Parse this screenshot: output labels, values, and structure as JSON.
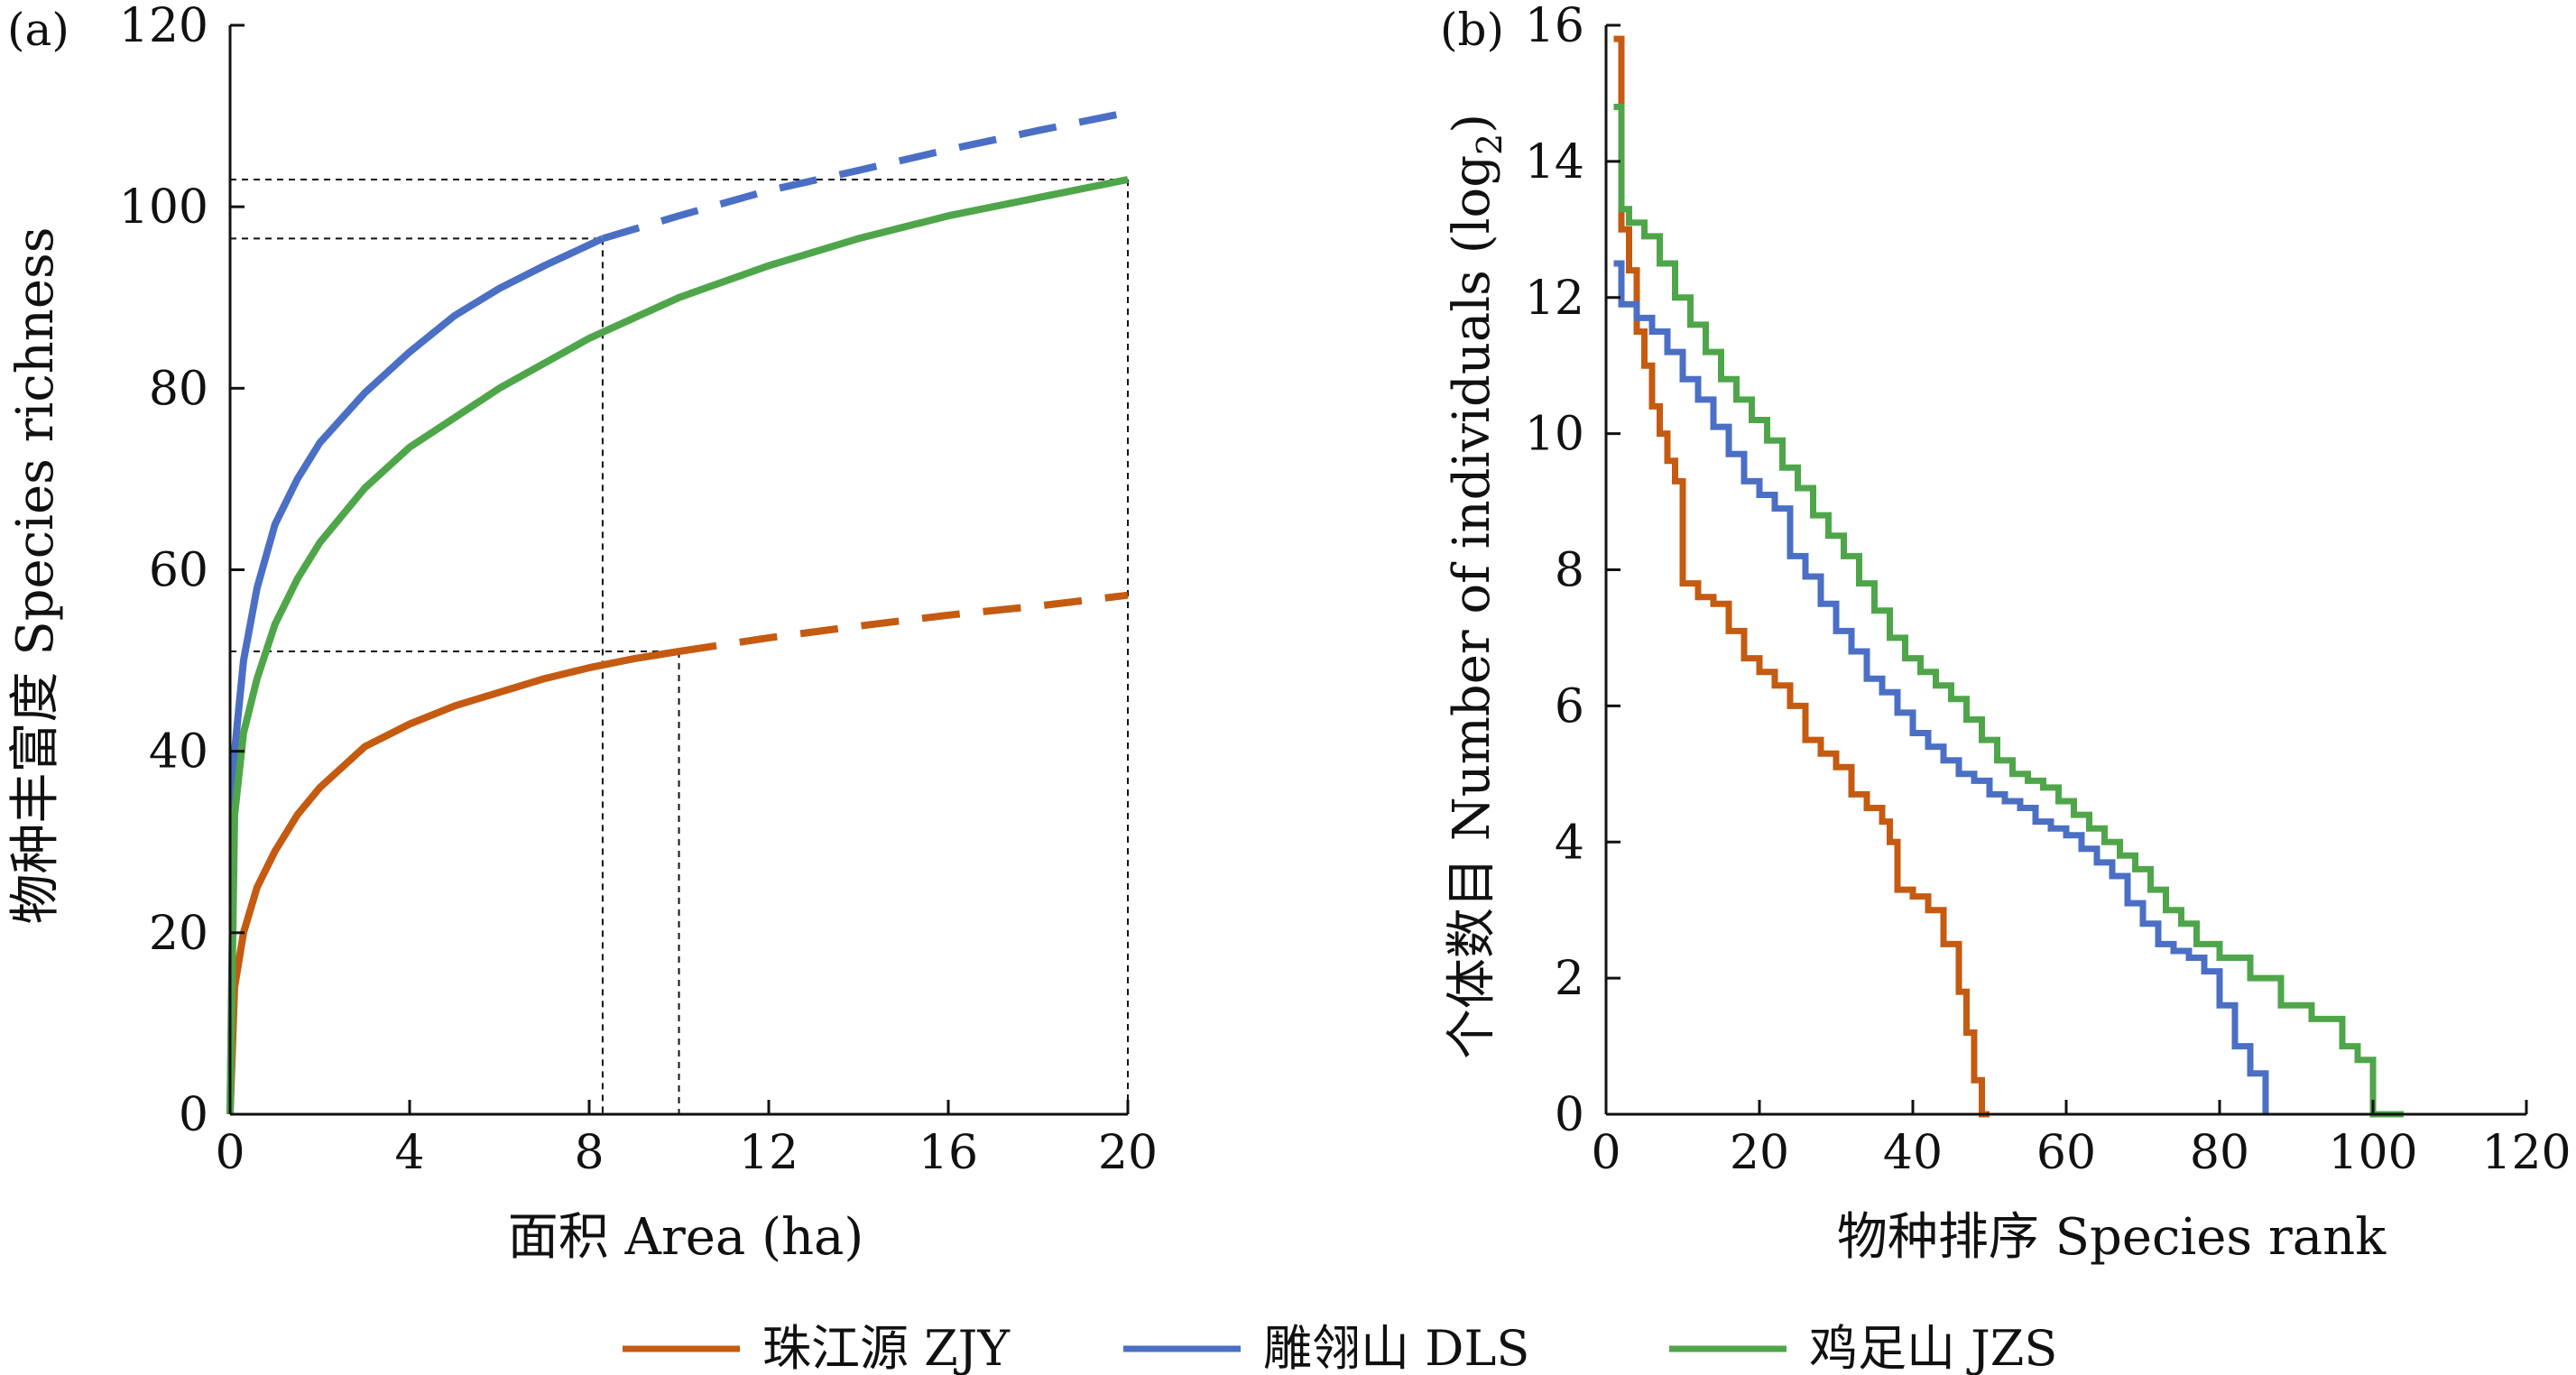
{
  "colors": {
    "zjy": "#c55a11",
    "dls": "#4a6fc4",
    "jzs": "#4fa64a",
    "axis": "#111111",
    "guide": "#111111"
  },
  "legend": {
    "placement": "bottom-center",
    "items": [
      {
        "key": "zjy",
        "label": "珠江源 ZJY"
      },
      {
        "key": "dls",
        "label": "雕翎山 DLS"
      },
      {
        "key": "jzs",
        "label": "鸡足山 JZS"
      }
    ]
  },
  "chart_data": [
    {
      "panel_label": "(a)",
      "type": "line",
      "xlabel": "面积 Area (ha)",
      "ylabel": "物种丰富度 Species richness",
      "xlim": [
        0,
        20
      ],
      "ylim": [
        0,
        120
      ],
      "xticks": [
        0,
        4,
        8,
        12,
        16,
        20
      ],
      "yticks": [
        0,
        20,
        40,
        60,
        80,
        100,
        120
      ],
      "grid": false,
      "series": [
        {
          "key": "zjy",
          "name": "珠江源 ZJY",
          "observed": {
            "x": [
              0,
              0.1,
              0.3,
              0.6,
              1,
              1.5,
              2,
              3,
              4,
              5,
              6,
              7,
              8,
              9,
              10
            ],
            "y": [
              0,
              14,
              20,
              25,
              29,
              33,
              36,
              40.5,
              43,
              45,
              46.5,
              48,
              49.2,
              50.2,
              51
            ]
          },
          "extrapolated": {
            "x": [
              10,
              12,
              14,
              16,
              18,
              20
            ],
            "y": [
              51,
              52.5,
              53.8,
              55,
              56,
              57.2
            ]
          }
        },
        {
          "key": "dls",
          "name": "雕翎山 DLS",
          "observed": {
            "x": [
              0,
              0.1,
              0.3,
              0.6,
              1,
              1.5,
              2,
              3,
              4,
              5,
              6,
              7,
              8,
              8.3
            ],
            "y": [
              0,
              40,
              50,
              58,
              65,
              70,
              74,
              79.5,
              84,
              88,
              91,
              93.5,
              95.8,
              96.5
            ]
          },
          "extrapolated": {
            "x": [
              8.3,
              10,
              12,
              14,
              16,
              18,
              20
            ],
            "y": [
              96.5,
              99,
              101.8,
              104,
              106.3,
              108.4,
              110.4
            ]
          }
        },
        {
          "key": "jzs",
          "name": "鸡足山 JZS",
          "observed": {
            "x": [
              0,
              0.1,
              0.3,
              0.6,
              1,
              1.5,
              2,
              3,
              4,
              6,
              8,
              10,
              12,
              14,
              16,
              18,
              20
            ],
            "y": [
              0,
              33,
              42,
              48,
              54,
              59,
              63,
              69,
              73.5,
              80,
              85.5,
              90,
              93.5,
              96.5,
              99,
              101,
              103
            ]
          }
        }
      ],
      "reference_lines": [
        {
          "series": "dls",
          "x": 8.3,
          "y": 96.5
        },
        {
          "series": "zjy",
          "x": 10,
          "y": 51
        },
        {
          "series": "jzs",
          "x": 20,
          "y": 103
        }
      ]
    },
    {
      "panel_label": "(b)",
      "type": "line",
      "step": true,
      "xlabel": "物种排序 Species rank",
      "ylabel": "个体数目 Number of individuals (log",
      "ylabel_subscript": "2",
      "ylabel_suffix": ")",
      "xlim": [
        0,
        120
      ],
      "ylim": [
        0,
        16
      ],
      "xticks": [
        0,
        20,
        40,
        60,
        80,
        100,
        120
      ],
      "yticks": [
        0,
        2,
        4,
        6,
        8,
        10,
        12,
        14,
        16
      ],
      "grid": false,
      "series": [
        {
          "key": "zjy",
          "name": "珠江源 ZJY",
          "x": [
            1,
            2,
            3,
            4,
            5,
            6,
            7,
            8,
            9,
            10,
            12,
            14,
            16,
            18,
            20,
            22,
            24,
            26,
            28,
            30,
            32,
            34,
            36,
            37,
            38,
            40,
            42,
            44,
            46,
            47,
            48,
            49,
            50
          ],
          "y": [
            15.8,
            13.0,
            12.4,
            11.5,
            11.0,
            10.4,
            10.0,
            9.6,
            9.3,
            7.8,
            7.6,
            7.5,
            7.1,
            6.7,
            6.5,
            6.3,
            6.0,
            5.5,
            5.3,
            5.1,
            4.7,
            4.5,
            4.3,
            4.0,
            3.3,
            3.2,
            3.0,
            2.5,
            1.8,
            1.2,
            0.5,
            0,
            0
          ]
        },
        {
          "key": "dls",
          "name": "雕翎山 DLS",
          "x": [
            1,
            2,
            4,
            6,
            8,
            10,
            12,
            14,
            16,
            18,
            20,
            22,
            24,
            26,
            28,
            30,
            32,
            34,
            36,
            38,
            40,
            42,
            44,
            46,
            48,
            50,
            52,
            54,
            56,
            58,
            60,
            62,
            64,
            66,
            68,
            70,
            72,
            74,
            76,
            78,
            80,
            82,
            84,
            86
          ],
          "y": [
            12.5,
            11.9,
            11.7,
            11.5,
            11.2,
            10.8,
            10.5,
            10.1,
            9.7,
            9.3,
            9.1,
            8.9,
            8.2,
            7.9,
            7.5,
            7.1,
            6.8,
            6.4,
            6.2,
            5.9,
            5.6,
            5.4,
            5.2,
            5.0,
            4.9,
            4.7,
            4.6,
            4.5,
            4.3,
            4.2,
            4.1,
            3.9,
            3.7,
            3.5,
            3.1,
            2.8,
            2.5,
            2.4,
            2.3,
            2.1,
            1.6,
            1.0,
            0.6,
            0
          ]
        },
        {
          "key": "jzs",
          "name": "鸡足山 JZS",
          "x": [
            1,
            2,
            3,
            5,
            7,
            9,
            11,
            13,
            15,
            17,
            19,
            21,
            23,
            25,
            27,
            29,
            31,
            33,
            35,
            37,
            39,
            41,
            43,
            45,
            47,
            49,
            51,
            53,
            55,
            57,
            59,
            61,
            63,
            65,
            67,
            69,
            71,
            73,
            75,
            77,
            80,
            84,
            88,
            92,
            96,
            98,
            100,
            104
          ],
          "y": [
            14.8,
            13.3,
            13.1,
            12.9,
            12.5,
            12.0,
            11.6,
            11.2,
            10.8,
            10.5,
            10.2,
            9.9,
            9.5,
            9.2,
            8.8,
            8.5,
            8.2,
            7.8,
            7.4,
            7.0,
            6.7,
            6.5,
            6.3,
            6.1,
            5.8,
            5.5,
            5.2,
            5.0,
            4.9,
            4.8,
            4.6,
            4.4,
            4.2,
            4.0,
            3.8,
            3.6,
            3.3,
            3.0,
            2.8,
            2.5,
            2.3,
            2.0,
            1.6,
            1.4,
            1.0,
            0.8,
            0,
            0
          ]
        }
      ]
    }
  ]
}
